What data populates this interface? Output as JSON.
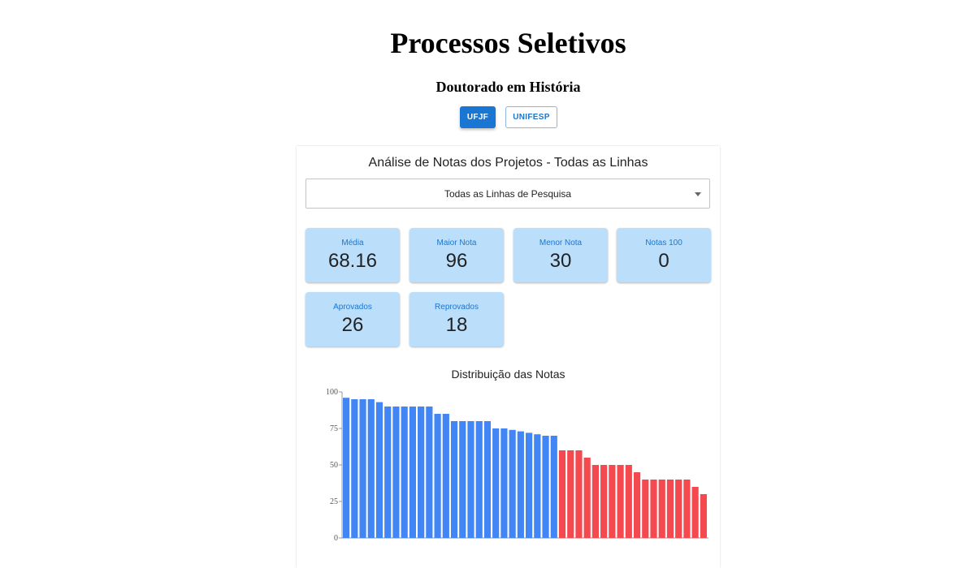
{
  "header": {
    "title": "Processos Seletivos",
    "program": "Doutorado em História"
  },
  "tabs": [
    {
      "label": "UFJF",
      "active": true
    },
    {
      "label": "UNIFESP",
      "active": false
    }
  ],
  "panel": {
    "title": "Análise de Notas dos Projetos - Todas as Linhas",
    "select_value": "Todas as Linhas de Pesquisa"
  },
  "stats": [
    {
      "label": "Média",
      "value": "68.16"
    },
    {
      "label": "Maior Nota",
      "value": "96"
    },
    {
      "label": "Menor Nota",
      "value": "30"
    },
    {
      "label": "Notas 100",
      "value": "0"
    },
    {
      "label": "Aprovados",
      "value": "26"
    },
    {
      "label": "Reprovados",
      "value": "18"
    }
  ],
  "colors": {
    "primary": "#1976d2",
    "stat_bg": "#bbdefb",
    "approved": "#4285f4",
    "failed": "#f44a4f"
  },
  "chart_data": {
    "type": "bar",
    "title": "Distribuição das Notas",
    "xlabel": "",
    "ylabel": "",
    "ylim": [
      0,
      100
    ],
    "yticks": [
      0,
      25,
      50,
      75,
      100
    ],
    "series": [
      {
        "name": "Aprovados",
        "values": [
          96,
          95,
          95,
          95,
          93,
          90,
          90,
          90,
          90,
          90,
          90,
          85,
          85,
          80,
          80,
          80,
          80,
          80,
          75,
          75,
          74,
          73,
          72,
          71,
          70,
          70
        ]
      },
      {
        "name": "Reprovados",
        "values": [
          60,
          60,
          60,
          55,
          50,
          50,
          50,
          50,
          50,
          45,
          40,
          40,
          40,
          40,
          40,
          40,
          35,
          30
        ]
      }
    ]
  }
}
